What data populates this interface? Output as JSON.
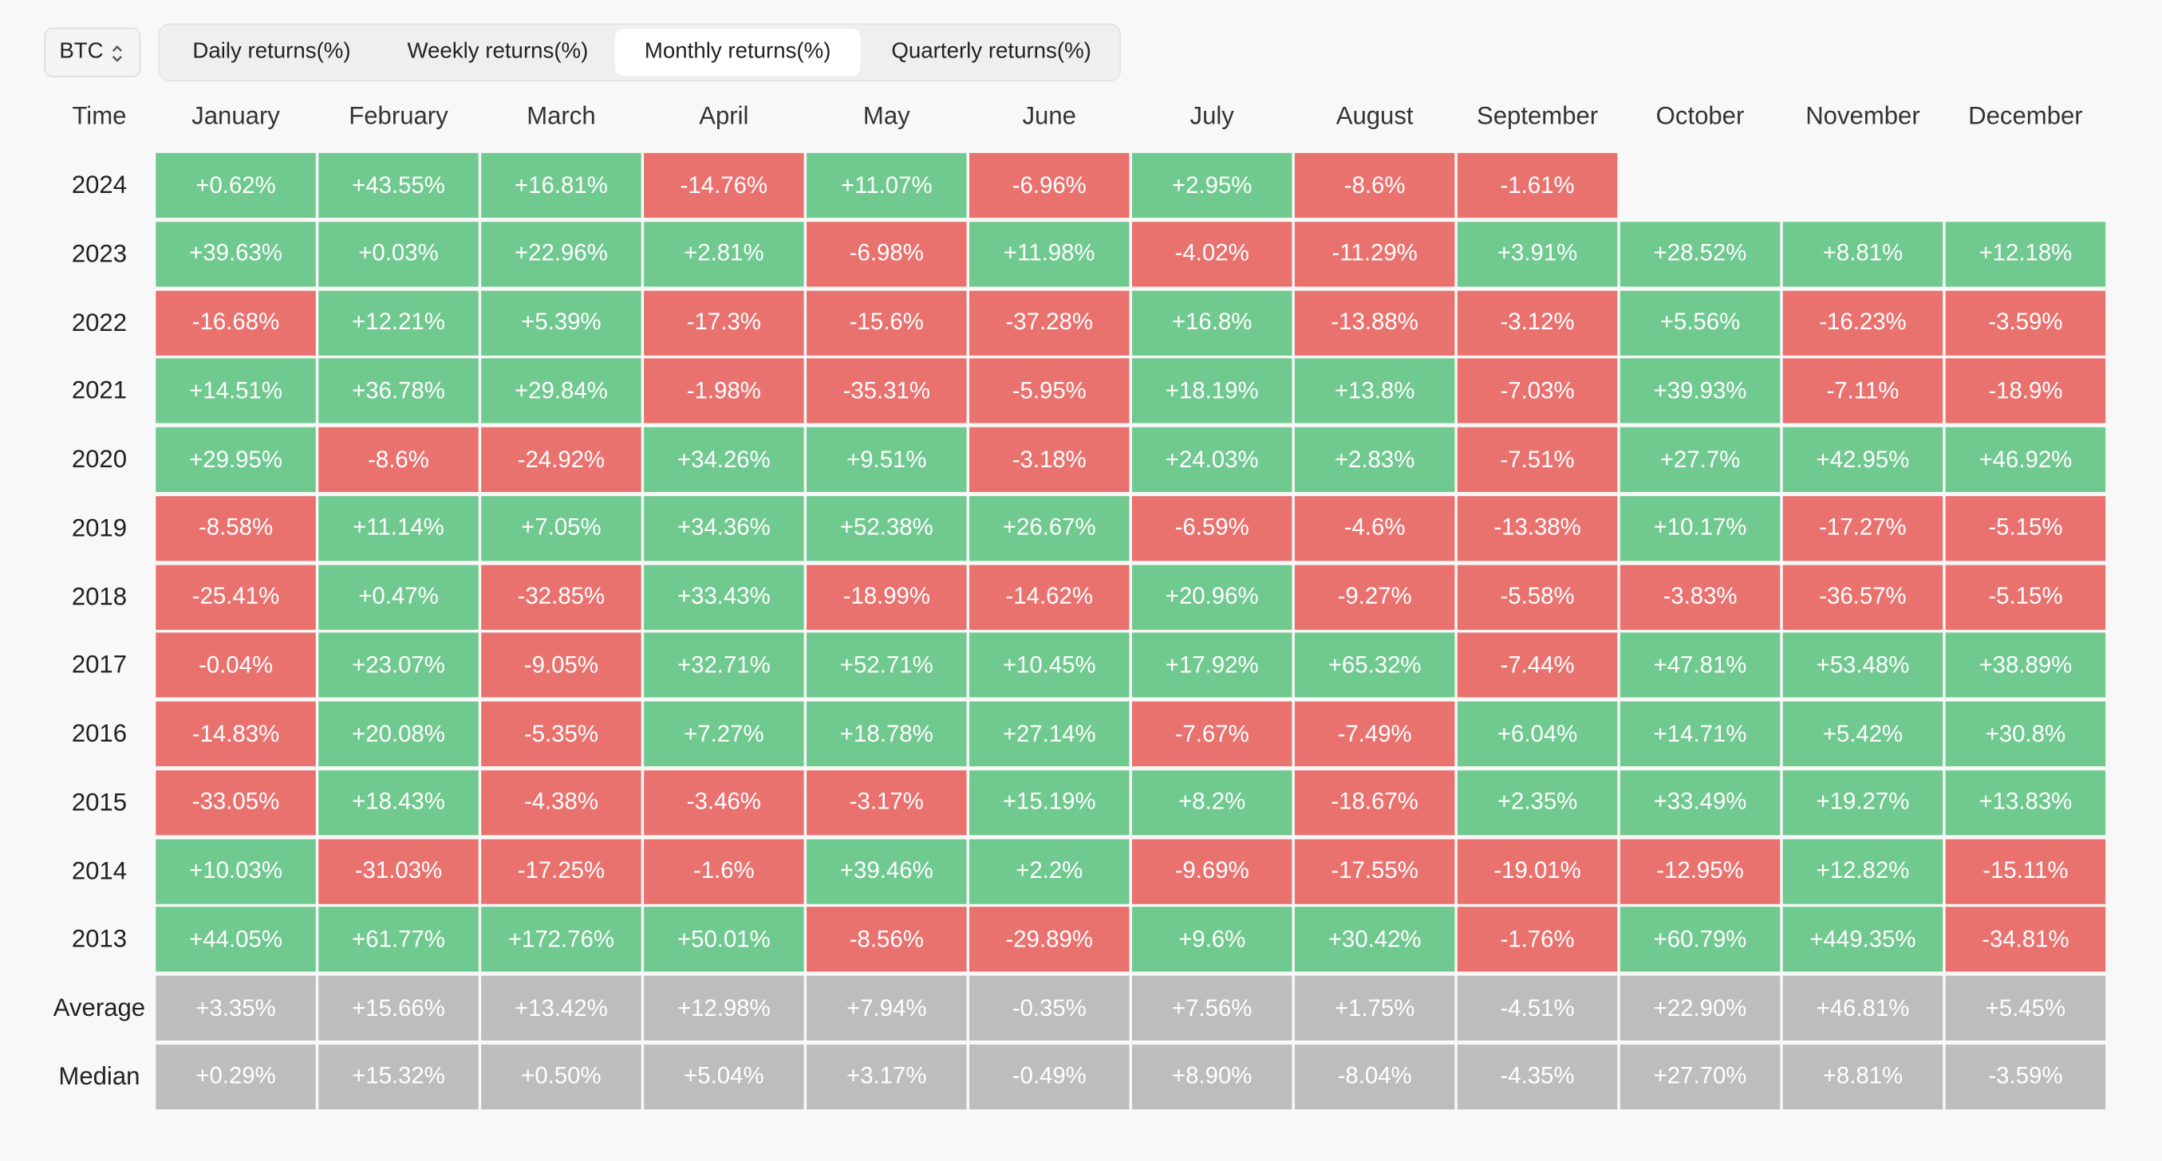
{
  "selector": {
    "value": "BTC"
  },
  "tabs": {
    "items": [
      "Daily returns(%)",
      "Weekly returns(%)",
      "Monthly returns(%)",
      "Quarterly returns(%)"
    ],
    "active": 2
  },
  "colors": {
    "positive": "#70c98f",
    "negative": "#e9726f",
    "summary": "#bdbdbd"
  },
  "table": {
    "header": [
      "Time",
      "January",
      "February",
      "March",
      "April",
      "May",
      "June",
      "July",
      "August",
      "September",
      "October",
      "November",
      "December"
    ],
    "rows": [
      [
        "2024",
        "+0.62%",
        "+43.55%",
        "+16.81%",
        "-14.76%",
        "+11.07%",
        "-6.96%",
        "+2.95%",
        "-8.6%",
        "-1.61%"
      ],
      [
        "2023",
        "+39.63%",
        "+0.03%",
        "+22.96%",
        "+2.81%",
        "-6.98%",
        "+11.98%",
        "-4.02%",
        "-11.29%",
        "+3.91%",
        "+28.52%",
        "+8.81%",
        "+12.18%"
      ],
      [
        "2022",
        "-16.68%",
        "+12.21%",
        "+5.39%",
        "-17.3%",
        "-15.6%",
        "-37.28%",
        "+16.8%",
        "-13.88%",
        "-3.12%",
        "+5.56%",
        "-16.23%",
        "-3.59%"
      ],
      [
        "2021",
        "+14.51%",
        "+36.78%",
        "+29.84%",
        "-1.98%",
        "-35.31%",
        "-5.95%",
        "+18.19%",
        "+13.8%",
        "-7.03%",
        "+39.93%",
        "-7.11%",
        "-18.9%"
      ],
      [
        "2020",
        "+29.95%",
        "-8.6%",
        "-24.92%",
        "+34.26%",
        "+9.51%",
        "-3.18%",
        "+24.03%",
        "+2.83%",
        "-7.51%",
        "+27.7%",
        "+42.95%",
        "+46.92%"
      ],
      [
        "2019",
        "-8.58%",
        "+11.14%",
        "+7.05%",
        "+34.36%",
        "+52.38%",
        "+26.67%",
        "-6.59%",
        "-4.6%",
        "-13.38%",
        "+10.17%",
        "-17.27%",
        "-5.15%"
      ],
      [
        "2018",
        "-25.41%",
        "+0.47%",
        "-32.85%",
        "+33.43%",
        "-18.99%",
        "-14.62%",
        "+20.96%",
        "-9.27%",
        "-5.58%",
        "-3.83%",
        "-36.57%",
        "-5.15%"
      ],
      [
        "2017",
        "-0.04%",
        "+23.07%",
        "-9.05%",
        "+32.71%",
        "+52.71%",
        "+10.45%",
        "+17.92%",
        "+65.32%",
        "-7.44%",
        "+47.81%",
        "+53.48%",
        "+38.89%"
      ],
      [
        "2016",
        "-14.83%",
        "+20.08%",
        "-5.35%",
        "+7.27%",
        "+18.78%",
        "+27.14%",
        "-7.67%",
        "-7.49%",
        "+6.04%",
        "+14.71%",
        "+5.42%",
        "+30.8%"
      ],
      [
        "2015",
        "-33.05%",
        "+18.43%",
        "-4.38%",
        "-3.46%",
        "-3.17%",
        "+15.19%",
        "+8.2%",
        "-18.67%",
        "+2.35%",
        "+33.49%",
        "+19.27%",
        "+13.83%"
      ],
      [
        "2014",
        "+10.03%",
        "-31.03%",
        "-17.25%",
        "-1.6%",
        "+39.46%",
        "+2.2%",
        "-9.69%",
        "-17.55%",
        "-19.01%",
        "-12.95%",
        "+12.82%",
        "-15.11%"
      ],
      [
        "2013",
        "+44.05%",
        "+61.77%",
        "+172.76%",
        "+50.01%",
        "-8.56%",
        "-29.89%",
        "+9.6%",
        "+30.42%",
        "-1.76%",
        "+60.79%",
        "+449.35%",
        "-34.81%"
      ]
    ],
    "summary_rows": [
      [
        "Average",
        "+3.35%",
        "+15.66%",
        "+13.42%",
        "+12.98%",
        "+7.94%",
        "-0.35%",
        "+7.56%",
        "+1.75%",
        "-4.51%",
        "+22.90%",
        "+46.81%",
        "+5.45%"
      ],
      [
        "Median",
        "+0.29%",
        "+15.32%",
        "+0.50%",
        "+5.04%",
        "+3.17%",
        "-0.49%",
        "+8.90%",
        "-8.04%",
        "-4.35%",
        "+27.70%",
        "+8.81%",
        "-3.59%"
      ]
    ]
  }
}
